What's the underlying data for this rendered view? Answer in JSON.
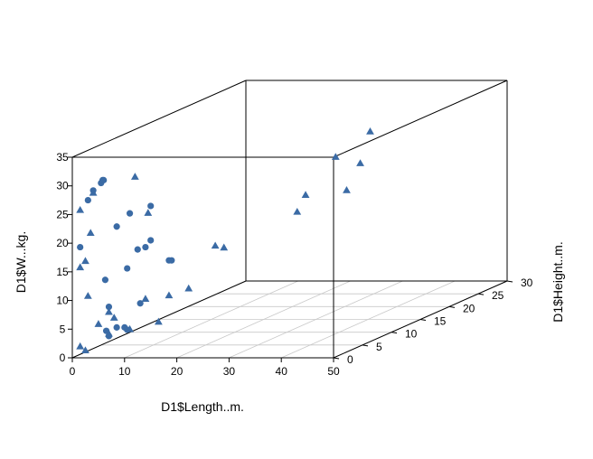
{
  "chart_data": {
    "type": "scatter",
    "title": "",
    "xlabel": "D1$Length..m.",
    "ylabel": "D1$Height..m.",
    "zlabel": "D1$W...kg.",
    "xlim": [
      0,
      50
    ],
    "ylim": [
      0,
      30
    ],
    "zlim": [
      0,
      35
    ],
    "x_ticks": [
      "0",
      "10",
      "20",
      "30",
      "40",
      "50"
    ],
    "y_ticks": [
      "0",
      "5",
      "10",
      "15",
      "20",
      "25",
      "30"
    ],
    "z_ticks": [
      "0",
      "5",
      "10",
      "15",
      "20",
      "25",
      "30",
      "35"
    ],
    "grid": true,
    "point_color": "#3B6BA5",
    "series": [
      {
        "marker": "circle",
        "points": [
          [
            5.5,
            0,
            30.5
          ],
          [
            6.0,
            0,
            31.0
          ],
          [
            5.8,
            0,
            31.0
          ],
          [
            4.0,
            0,
            29.2
          ],
          [
            3.0,
            0,
            27.5
          ],
          [
            1.5,
            0,
            19.3
          ],
          [
            6.3,
            0,
            13.6
          ],
          [
            8.5,
            0,
            22.9
          ],
          [
            11.0,
            0,
            25.2
          ],
          [
            15.0,
            0,
            26.5
          ],
          [
            15.0,
            0,
            20.5
          ],
          [
            14.0,
            0,
            19.3
          ],
          [
            12.5,
            0,
            18.9
          ],
          [
            10.5,
            0,
            15.6
          ],
          [
            7.0,
            0,
            8.9
          ],
          [
            6.5,
            0,
            4.7
          ],
          [
            7.0,
            0,
            3.8
          ],
          [
            8.5,
            0,
            5.3
          ],
          [
            10.0,
            0,
            5.3
          ],
          [
            10.5,
            0,
            4.9
          ],
          [
            13.0,
            0,
            9.5
          ],
          [
            18.5,
            0,
            17.0
          ],
          [
            19.0,
            0,
            17.0
          ]
        ]
      },
      {
        "marker": "triangle",
        "points": [
          [
            4.0,
            0,
            28.8
          ],
          [
            1.5,
            0,
            25.8
          ],
          [
            3.5,
            0,
            21.8
          ],
          [
            2.5,
            0,
            16.9
          ],
          [
            1.5,
            0,
            15.8
          ],
          [
            3.0,
            0,
            10.8
          ],
          [
            7.0,
            0,
            8.0
          ],
          [
            8.0,
            0,
            7.0
          ],
          [
            5.0,
            0,
            5.9
          ],
          [
            7.0,
            0,
            4.2
          ],
          [
            11.0,
            0,
            5.0
          ],
          [
            1.5,
            0,
            2.0
          ],
          [
            2.5,
            0,
            1.3
          ],
          [
            12.0,
            0,
            31.6
          ],
          [
            14.5,
            0,
            25.3
          ],
          [
            14.0,
            0,
            10.3
          ],
          [
            18.5,
            0,
            10.9
          ],
          [
            16.5,
            0,
            6.3
          ],
          [
            19.5,
            2.5,
            11.0
          ],
          [
            18.5,
            8,
            16.0
          ],
          [
            18.5,
            9.5,
            15.0
          ],
          [
            22.0,
            19,
            17.0
          ],
          [
            22.5,
            20,
            19.5
          ],
          [
            20.5,
            27,
            23.0
          ],
          [
            23.0,
            29,
            21.0
          ],
          [
            37.0,
            14,
            23.0
          ],
          [
            26.0,
            28,
            27.0
          ]
        ]
      }
    ]
  }
}
